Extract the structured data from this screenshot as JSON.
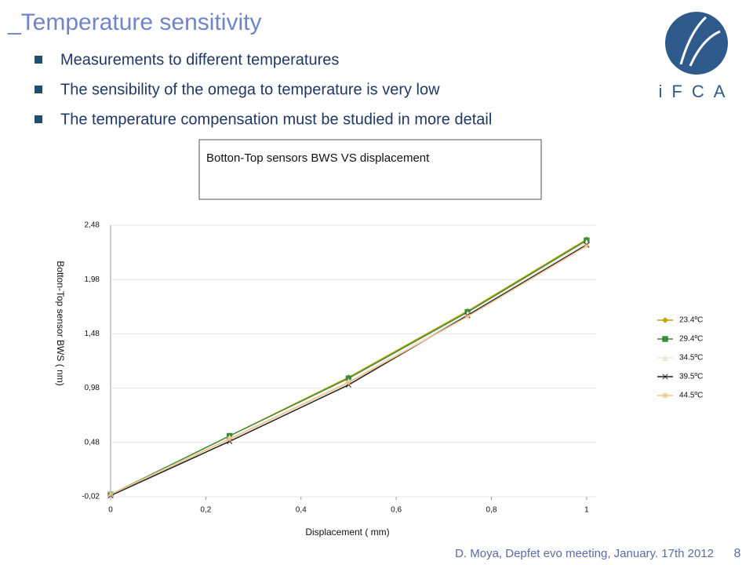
{
  "title": "_Temperature sensitivity",
  "bullets": [
    "Measurements to different temperatures",
    "The sensibility of the omega to temperature is very low",
    "The temperature compensation must be studied in more detail"
  ],
  "logo": "iFCA",
  "footer": "D. Moya, Depfet evo meeting, January. 17th 2012",
  "page_number": "8",
  "chart_data": {
    "type": "line",
    "title": "Botton-Top sensors BWS VS displacement",
    "x_label": "Displacement ( mm)",
    "y_label": "Botton-Top sensor BWS ( nm)",
    "x": [
      0,
      0.25,
      0.5,
      0.75,
      1
    ],
    "xlim": [
      0,
      1.02
    ],
    "xticks": [
      0,
      {
        "value": 0.2,
        "label": "0,2"
      },
      {
        "value": 0.4,
        "label": "0,4"
      },
      {
        "value": 0.6,
        "label": "0,6"
      },
      {
        "value": 0.8,
        "label": "0,8"
      },
      1
    ],
    "ylim": [
      -0.02,
      2.48
    ],
    "yticks": [
      {
        "value": -0.02,
        "label": "-0,02"
      },
      {
        "value": 0.48,
        "label": "0,48"
      },
      {
        "value": 0.98,
        "label": "0,98"
      },
      {
        "value": 1.48,
        "label": "1,48"
      },
      {
        "value": 1.98,
        "label": "1,98"
      },
      {
        "value": 2.48,
        "label": "2,48"
      }
    ],
    "grid": true,
    "legend": "right",
    "series": [
      {
        "name": "23.4ºC",
        "color": "#c9a200",
        "marker": "diamond",
        "values": [
          0,
          0.54,
          1.08,
          1.69,
          2.35
        ]
      },
      {
        "name": "29.4ºC",
        "color": "#3d8b3d",
        "marker": "square",
        "values": [
          0,
          0.54,
          1.07,
          1.68,
          2.34
        ]
      },
      {
        "name": "34.5ºC",
        "color": "#ece9d8",
        "marker": "triangle",
        "values": [
          0,
          0.52,
          1.04,
          1.66,
          2.32
        ]
      },
      {
        "name": "39.5ºC",
        "color": "#222222",
        "marker": "x",
        "values": [
          -0.01,
          0.49,
          1.01,
          1.65,
          2.3
        ]
      },
      {
        "name": "44.5ºC",
        "color": "#f3c08a",
        "marker": "star",
        "values": [
          0,
          0.51,
          1.03,
          1.64,
          2.29
        ]
      }
    ]
  }
}
